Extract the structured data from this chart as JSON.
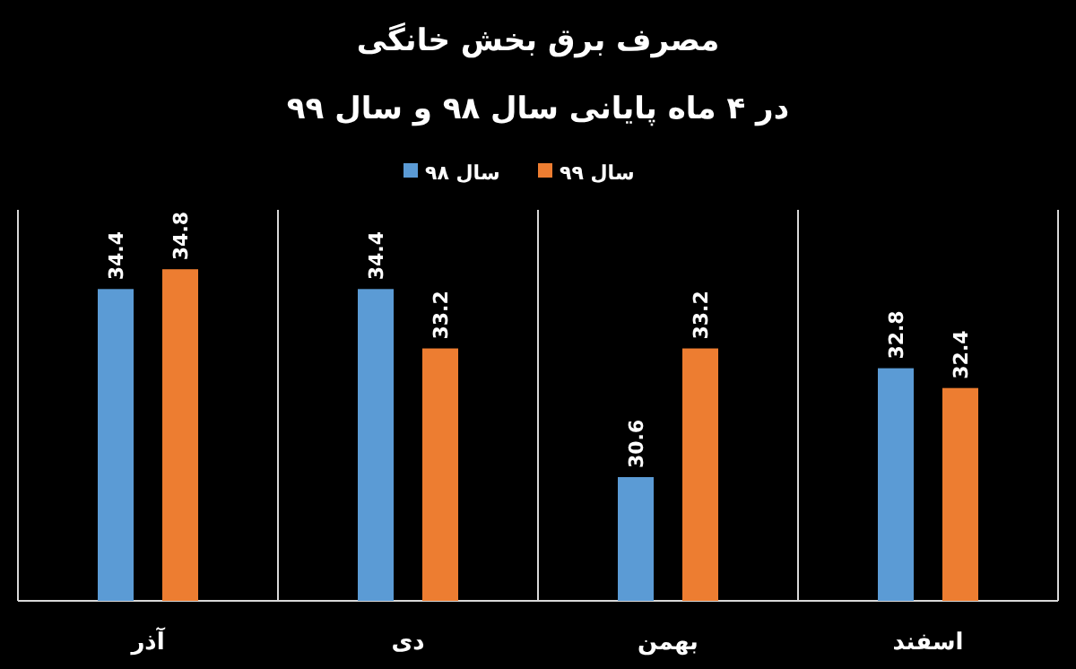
{
  "chart_data": {
    "type": "bar",
    "title": "مصرف برق بخش خانگی",
    "subtitle": "در ۴ ماه پایانی سال ۹۸ و سال ۹۹",
    "categories": [
      "آذر",
      "دی",
      "بهمن",
      "اسفند"
    ],
    "series": [
      {
        "name": "سال ۹۸",
        "color": "#5b9bd5",
        "values": [
          34.4,
          34.4,
          30.6,
          32.8
        ]
      },
      {
        "name": "سال ۹۹",
        "color": "#ed7d31",
        "values": [
          34.8,
          33.2,
          33.2,
          32.4
        ]
      }
    ],
    "ylim": [
      28.1,
      36
    ],
    "tick_labels": "x",
    "grid": "x",
    "legend": "top",
    "data_labels": true
  }
}
